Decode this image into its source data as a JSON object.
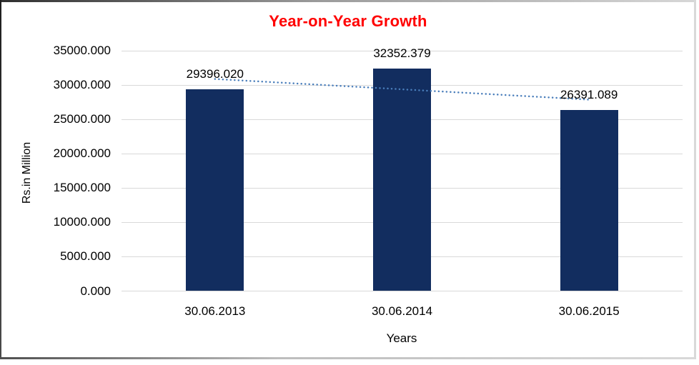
{
  "window": {
    "background": "#ffffff",
    "frame_border_dark": "#2f2f2f",
    "frame_border_light": "#d9d9d9"
  },
  "chart_data": {
    "type": "bar",
    "title": "Year-on-Year Growth",
    "title_color": "#ff0000",
    "xlabel": "Years",
    "ylabel": "Rs.in Million",
    "categories": [
      "30.06.2013",
      "30.06.2014",
      "30.06.2015"
    ],
    "values": [
      29396.02,
      32352.379,
      26391.089
    ],
    "data_labels": [
      "29396.020",
      "32352.379",
      "26391.089"
    ],
    "ylim": [
      0,
      35000
    ],
    "ytick_step": 5000,
    "ytick_labels": [
      "0.000",
      "5000.000",
      "10000.000",
      "15000.000",
      "20000.000",
      "25000.000",
      "30000.000",
      "35000.000"
    ],
    "grid": "horizontal",
    "gridline_color": "#d9d9d9",
    "bar_color": "#122d5f",
    "text_color": "#000000",
    "legend": "none",
    "trendline": {
      "type": "linear",
      "style": "dotted",
      "color": "#4a7ebb"
    }
  }
}
